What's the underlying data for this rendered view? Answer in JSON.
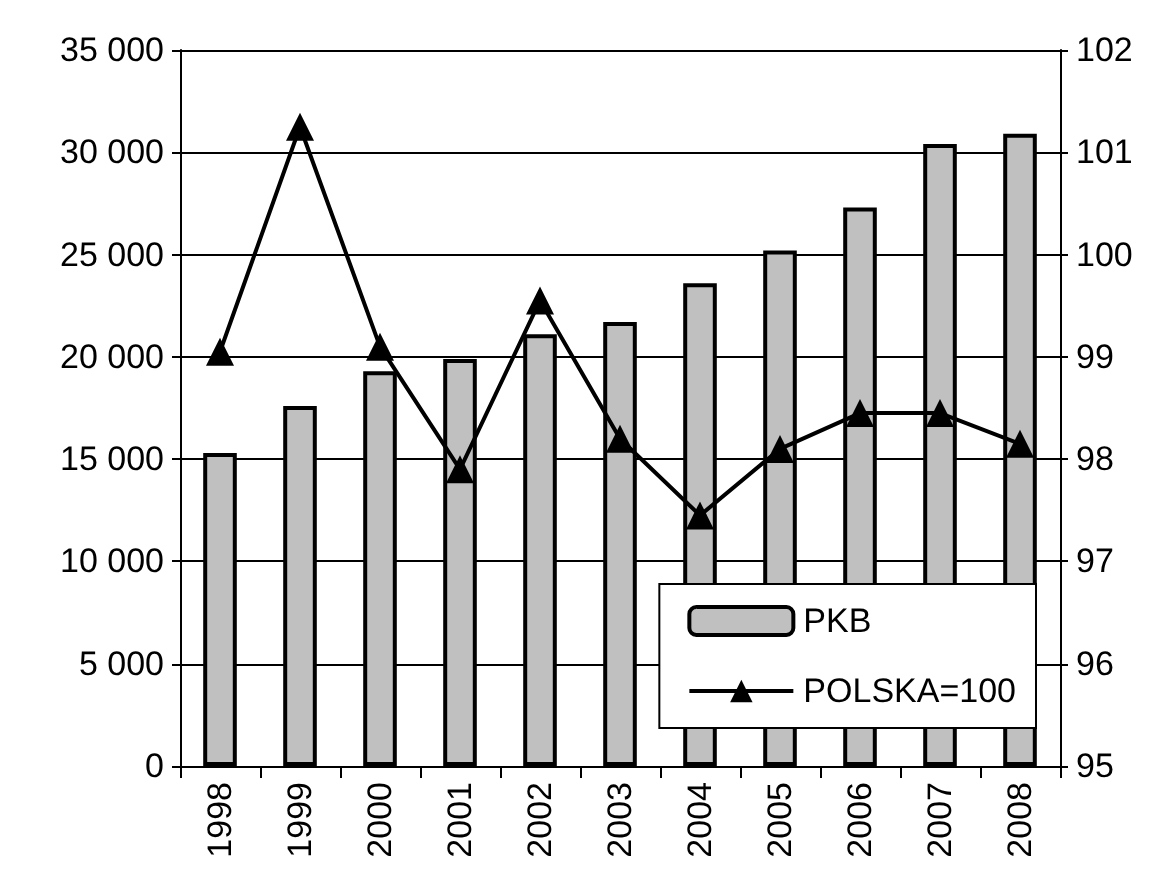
{
  "chart_data": {
    "type": "bar",
    "categories": [
      "1998",
      "1999",
      "2000",
      "2001",
      "2002",
      "2003",
      "2004",
      "2005",
      "2006",
      "2007",
      "2008"
    ],
    "series": [
      {
        "name": "PKB",
        "color": "#c0c0c0",
        "values": [
          15300,
          17600,
          19300,
          19900,
          21100,
          21700,
          23600,
          25200,
          27300,
          30400,
          30900
        ]
      },
      {
        "name": "POLSKA=100",
        "type": "line",
        "axis": "y2",
        "color": "#000000",
        "marker": "triangle",
        "values": [
          99.05,
          101.25,
          99.1,
          97.9,
          99.55,
          98.2,
          97.45,
          98.1,
          98.45,
          98.45,
          98.15
        ]
      }
    ],
    "ylim": [
      0,
      35000
    ],
    "yticks": [
      {
        "value": 0,
        "label": "0"
      },
      {
        "value": 5000,
        "label": "5 000"
      },
      {
        "value": 10000,
        "label": "10 000"
      },
      {
        "value": 15000,
        "label": "15 000"
      },
      {
        "value": 20000,
        "label": "20 000"
      },
      {
        "value": 25000,
        "label": "25 000"
      },
      {
        "value": 30000,
        "label": "30 000"
      },
      {
        "value": 35000,
        "label": "35 000"
      }
    ],
    "y2lim": [
      95,
      102
    ],
    "y2ticks": [
      95,
      96,
      97,
      98,
      99,
      100,
      101,
      102
    ],
    "grid": "y",
    "legend": "bottom right"
  }
}
